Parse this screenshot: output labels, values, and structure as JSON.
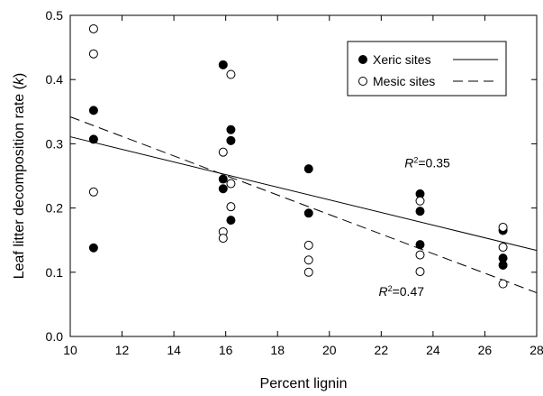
{
  "chart_data": {
    "type": "scatter",
    "xlabel": "Percent  lignin",
    "ylabel_prefix": "Leaf  litter  decomposition  rate  (",
    "ylabel_var": "k",
    "ylabel_suffix": ")",
    "xlim": [
      10,
      28
    ],
    "ylim": [
      0.0,
      0.5
    ],
    "x_ticks": [
      "10",
      "12",
      "14",
      "16",
      "18",
      "20",
      "22",
      "24",
      "26",
      "28"
    ],
    "y_ticks": [
      "0.0",
      "0.1",
      "0.2",
      "0.3",
      "0.4",
      "0.5"
    ],
    "legend_position": "top-right",
    "series": [
      {
        "name": "Xeric sites",
        "marker": "filled-circle",
        "line": "solid",
        "points": [
          [
            10.9,
            0.352
          ],
          [
            10.9,
            0.307
          ],
          [
            10.9,
            0.138
          ],
          [
            15.9,
            0.423
          ],
          [
            15.9,
            0.245
          ],
          [
            15.9,
            0.23
          ],
          [
            16.2,
            0.322
          ],
          [
            16.2,
            0.305
          ],
          [
            16.2,
            0.181
          ],
          [
            19.2,
            0.261
          ],
          [
            19.2,
            0.192
          ],
          [
            23.5,
            0.222
          ],
          [
            23.5,
            0.195
          ],
          [
            23.5,
            0.143
          ],
          [
            26.7,
            0.165
          ],
          [
            26.7,
            0.122
          ],
          [
            26.7,
            0.111
          ]
        ],
        "fit": {
          "x": [
            10,
            28
          ],
          "y": [
            0.311,
            0.134
          ]
        },
        "r2_label": "=0.35"
      },
      {
        "name": "Mesic sites",
        "marker": "open-circle",
        "line": "dashed",
        "points": [
          [
            10.9,
            0.479
          ],
          [
            10.9,
            0.44
          ],
          [
            10.9,
            0.225
          ],
          [
            15.9,
            0.287
          ],
          [
            15.9,
            0.163
          ],
          [
            15.9,
            0.153
          ],
          [
            16.2,
            0.408
          ],
          [
            16.2,
            0.238
          ],
          [
            16.2,
            0.202
          ],
          [
            19.2,
            0.142
          ],
          [
            19.2,
            0.119
          ],
          [
            19.2,
            0.1
          ],
          [
            23.5,
            0.211
          ],
          [
            23.5,
            0.127
          ],
          [
            23.5,
            0.101
          ],
          [
            26.7,
            0.17
          ],
          [
            26.7,
            0.139
          ],
          [
            26.7,
            0.082
          ]
        ],
        "fit": {
          "x": [
            10,
            28
          ],
          "y": [
            0.342,
            0.068
          ]
        },
        "r2_label": "=0.47"
      }
    ],
    "annotations": [
      {
        "text_r": "R",
        "text_sup": "2",
        "value": "=0.35",
        "x": 22.9,
        "y": 0.263
      },
      {
        "text_r": "R",
        "text_sup": "2",
        "value": "=0.47",
        "x": 21.9,
        "y": 0.063
      }
    ],
    "colors": {
      "axis": "#000000",
      "marker_fill_xeric": "#000000",
      "marker_fill_mesic": "#ffffff"
    }
  }
}
